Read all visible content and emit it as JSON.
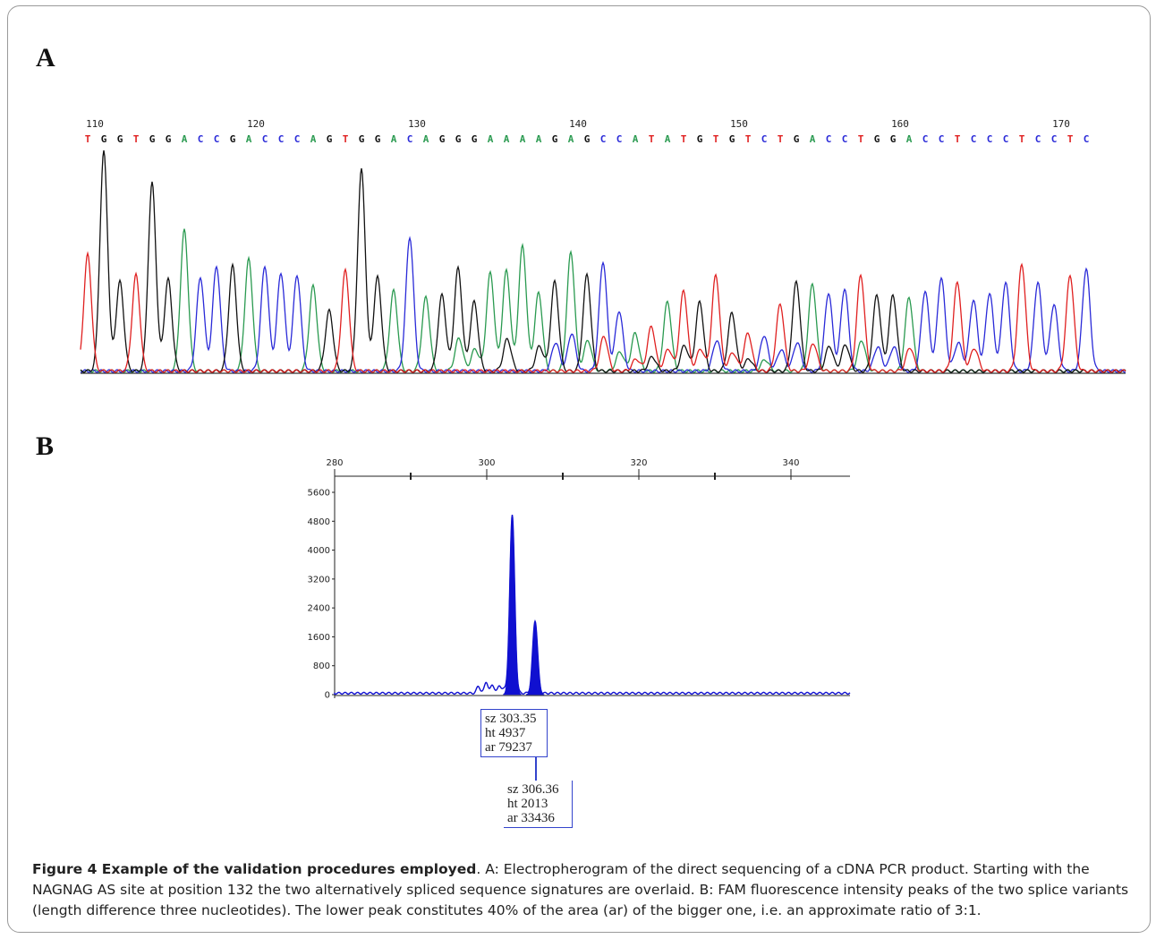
{
  "panel_a_label": "A",
  "panel_b_label": "B",
  "caption": {
    "title": "Figure 4 Example of the validation procedures employed",
    "text": ". A: Electropherogram of the direct sequencing of a cDNA PCR product. Starting with the NAGNAG AS site at position 132 the two alternatively spliced sequence signatures are overlaid. B: FAM fluorescence intensity peaks of the two splice variants (length difference three nucleotides). The lower peak constitutes 40% of the area (ar) of the bigger one, i.e. an approximate ratio of 3:1."
  },
  "colors": {
    "A": "#2a9a50",
    "C": "#2a2ad8",
    "G": "#111111",
    "T": "#e02020",
    "fam": "#1010d0"
  },
  "chart_data": [
    {
      "type": "line",
      "panel": "A",
      "position_ticks": [
        110,
        120,
        130,
        140,
        150,
        160,
        170
      ],
      "sequence": "TGGTGGACCGACCCAGTGGACAGGGAAAAGAGCCATATGTGTCTGACCTGGACCTCCCTCCTC",
      "peak_heights": [
        0.52,
        0.98,
        0.4,
        0.43,
        0.84,
        0.41,
        0.63,
        0.42,
        0.47,
        0.47,
        0.5,
        0.47,
        0.44,
        0.43,
        0.38,
        0.27,
        0.45,
        0.9,
        0.42,
        0.36,
        0.6,
        0.33,
        0.34,
        0.46,
        0.31,
        0.44,
        0.45,
        0.56,
        0.35,
        0.4,
        0.53,
        0.43,
        0.49,
        0.27,
        0.17,
        0.2,
        0.31,
        0.36,
        0.31,
        0.43,
        0.26,
        0.17,
        0.16,
        0.3,
        0.4,
        0.39,
        0.35,
        0.37,
        0.43,
        0.34,
        0.34,
        0.33,
        0.36,
        0.42,
        0.4,
        0.32,
        0.35,
        0.4,
        0.48,
        0.4,
        0.3,
        0.43,
        0.46
      ],
      "overlay_start_index": 23
    },
    {
      "type": "line",
      "panel": "B",
      "x_ticks": [
        280,
        300,
        320,
        340
      ],
      "y_ticks": [
        0,
        800,
        1600,
        2400,
        3200,
        4000,
        4800,
        5600
      ],
      "xlim": [
        280,
        350
      ],
      "ylim": [
        0,
        5900
      ],
      "peaks": [
        {
          "size": 303.35,
          "height": 4937,
          "area": 79237
        },
        {
          "size": 306.36,
          "height": 2013,
          "area": 33436
        }
      ],
      "small_peaks": [
        {
          "size": 298.9,
          "height": 200
        },
        {
          "size": 299.9,
          "height": 320
        },
        {
          "size": 300.7,
          "height": 250
        },
        {
          "size": 301.6,
          "height": 220
        },
        {
          "size": 302.3,
          "height": 160
        }
      ],
      "callouts": [
        {
          "sz_label": "sz 303.35",
          "ht_label": "ht 4937",
          "ar_label": "ar 79237"
        },
        {
          "sz_label": "sz 306.36",
          "ht_label": "ht 2013",
          "ar_label": "ar 33436"
        }
      ]
    }
  ]
}
